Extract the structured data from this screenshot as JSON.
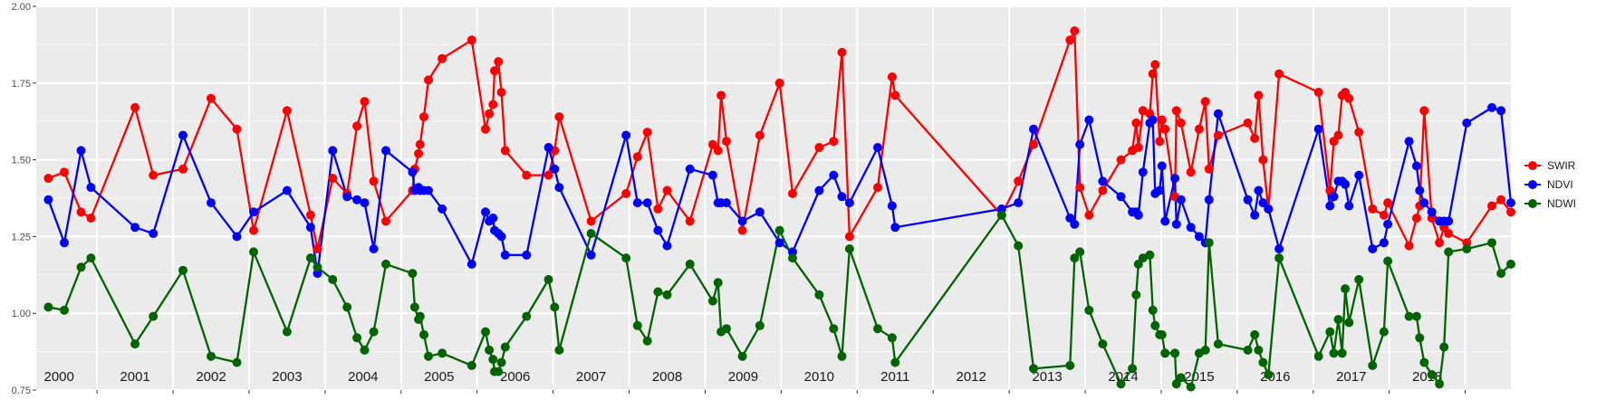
{
  "chart_data": {
    "type": "line",
    "title": "",
    "xlabel": "",
    "ylabel": "",
    "xlim": [
      1999.7,
      2019.1
    ],
    "ylim": [
      0.75,
      2.0
    ],
    "y_ticks": [
      "0.75",
      "1.00",
      "1.25",
      "1.50",
      "1.75",
      "2.00"
    ],
    "year_labels": [
      "2000",
      "2001",
      "2002",
      "2003",
      "2004",
      "2005",
      "2006",
      "2007",
      "2008",
      "2009",
      "2010",
      "2011",
      "2012",
      "2013",
      "2014",
      "2015",
      "2016",
      "2017",
      "2018"
    ],
    "panel_background": "#ebebeb",
    "grid": true,
    "legend_position": "right",
    "series": [
      {
        "name": "SWIR",
        "color": "#ff0000",
        "x": [
          1999.86,
          2000.07,
          2000.29,
          2000.42,
          2001.0,
          2001.24,
          2001.63,
          2002.0,
          2002.34,
          2002.56,
          2003.0,
          2003.31,
          2003.4,
          2003.6,
          2003.79,
          2003.92,
          2004.02,
          2004.14,
          2004.3,
          2004.65,
          2004.68,
          2004.73,
          2004.75,
          2004.8,
          2004.86,
          2005.04,
          2005.43,
          2005.61,
          2005.66,
          2005.71,
          2005.73,
          2005.78,
          2005.82,
          2005.87,
          2006.15,
          2006.44,
          2006.52,
          2006.58,
          2007.0,
          2007.46,
          2007.61,
          2007.74,
          2007.88,
          2008.0,
          2008.3,
          2008.6,
          2008.67,
          2008.71,
          2008.78,
          2008.99,
          2009.22,
          2009.48,
          2009.65,
          2010.0,
          2010.19,
          2010.3,
          2010.4,
          2010.77,
          2010.96,
          2011.0,
          2012.4,
          2012.62,
          2012.82,
          2013.3,
          2013.36,
          2013.43,
          2013.55,
          2013.73,
          2013.97,
          2014.12,
          2014.17,
          2014.2,
          2014.26,
          2014.35,
          2014.39,
          2014.42,
          2014.48,
          2014.51,
          2014.55,
          2014.68,
          2014.7,
          2014.76,
          2014.89,
          2015.0,
          2015.08,
          2015.13,
          2015.25,
          2015.64,
          2015.73,
          2015.78,
          2015.84,
          2015.91,
          2016.05,
          2016.57,
          2016.72,
          2016.77,
          2016.83,
          2016.88,
          2016.92,
          2016.97,
          2017.1,
          2017.28,
          2017.43,
          2017.48,
          2017.76,
          2017.86,
          2017.9,
          2017.96,
          2018.06,
          2018.16,
          2018.22,
          2018.28,
          2018.52,
          2018.85,
          2018.97,
          2019.1
        ],
        "y": [
          1.44,
          1.46,
          1.33,
          1.31,
          1.67,
          1.45,
          1.47,
          1.7,
          1.6,
          1.27,
          1.66,
          1.32,
          1.21,
          1.44,
          1.39,
          1.61,
          1.69,
          1.43,
          1.3,
          1.4,
          1.47,
          1.52,
          1.55,
          1.64,
          1.76,
          1.83,
          1.89,
          1.6,
          1.65,
          1.68,
          1.79,
          1.82,
          1.72,
          1.53,
          1.45,
          1.45,
          1.53,
          1.64,
          1.3,
          1.39,
          1.51,
          1.59,
          1.34,
          1.4,
          1.3,
          1.55,
          1.53,
          1.71,
          1.56,
          1.27,
          1.58,
          1.75,
          1.39,
          1.54,
          1.56,
          1.85,
          1.25,
          1.41,
          1.77,
          1.71,
          1.32,
          1.43,
          1.55,
          1.89,
          1.92,
          1.41,
          1.32,
          1.4,
          1.5,
          1.53,
          1.62,
          1.54,
          1.66,
          1.65,
          1.78,
          1.81,
          1.56,
          1.63,
          1.6,
          1.38,
          1.66,
          1.62,
          1.46,
          1.6,
          1.69,
          1.47,
          1.58,
          1.62,
          1.57,
          1.71,
          1.5,
          1.34,
          1.78,
          1.72,
          1.4,
          1.56,
          1.58,
          1.71,
          1.72,
          1.7,
          1.59,
          1.34,
          1.32,
          1.36,
          1.22,
          1.31,
          1.35,
          1.66,
          1.31,
          1.23,
          1.28,
          1.26,
          1.23,
          1.35,
          1.37,
          1.33
        ]
      },
      {
        "name": "NDVI",
        "color": "#0000ff",
        "x": [
          1999.86,
          2000.07,
          2000.29,
          2000.42,
          2001.0,
          2001.24,
          2001.63,
          2002.0,
          2002.34,
          2002.56,
          2003.0,
          2003.31,
          2003.4,
          2003.6,
          2003.79,
          2003.92,
          2004.02,
          2004.14,
          2004.3,
          2004.65,
          2004.68,
          2004.73,
          2004.75,
          2004.8,
          2004.86,
          2005.04,
          2005.43,
          2005.61,
          2005.66,
          2005.71,
          2005.73,
          2005.78,
          2005.82,
          2005.87,
          2006.15,
          2006.44,
          2006.52,
          2006.58,
          2007.0,
          2007.46,
          2007.61,
          2007.74,
          2007.88,
          2008.0,
          2008.3,
          2008.6,
          2008.67,
          2008.71,
          2008.78,
          2008.99,
          2009.22,
          2009.48,
          2009.65,
          2010.0,
          2010.19,
          2010.3,
          2010.4,
          2010.77,
          2010.96,
          2011.0,
          2012.4,
          2012.62,
          2012.82,
          2013.3,
          2013.36,
          2013.43,
          2013.55,
          2013.73,
          2013.97,
          2014.12,
          2014.17,
          2014.2,
          2014.26,
          2014.35,
          2014.39,
          2014.42,
          2014.48,
          2014.51,
          2014.55,
          2014.68,
          2014.7,
          2014.76,
          2014.89,
          2015.0,
          2015.08,
          2015.13,
          2015.25,
          2015.64,
          2015.73,
          2015.78,
          2015.84,
          2015.91,
          2016.05,
          2016.57,
          2016.72,
          2016.77,
          2016.83,
          2016.88,
          2016.92,
          2016.97,
          2017.1,
          2017.28,
          2017.43,
          2017.48,
          2017.76,
          2017.86,
          2017.9,
          2017.96,
          2018.06,
          2018.16,
          2018.22,
          2018.28,
          2018.52,
          2018.85,
          2018.97,
          2019.1
        ],
        "y": [
          1.37,
          1.23,
          1.53,
          1.41,
          1.28,
          1.26,
          1.58,
          1.36,
          1.25,
          1.33,
          1.4,
          1.28,
          1.13,
          1.53,
          1.38,
          1.37,
          1.36,
          1.21,
          1.53,
          1.46,
          1.4,
          1.41,
          1.4,
          1.4,
          1.4,
          1.34,
          1.16,
          1.33,
          1.3,
          1.31,
          1.27,
          1.26,
          1.25,
          1.19,
          1.19,
          1.54,
          1.47,
          1.41,
          1.19,
          1.58,
          1.36,
          1.36,
          1.27,
          1.22,
          1.47,
          1.45,
          1.36,
          1.36,
          1.36,
          1.3,
          1.33,
          1.23,
          1.2,
          1.4,
          1.45,
          1.38,
          1.36,
          1.54,
          1.35,
          1.28,
          1.34,
          1.36,
          1.6,
          1.31,
          1.29,
          1.55,
          1.63,
          1.43,
          1.38,
          1.33,
          1.33,
          1.32,
          1.46,
          1.62,
          1.63,
          1.39,
          1.4,
          1.48,
          1.3,
          1.44,
          1.29,
          1.37,
          1.28,
          1.25,
          1.23,
          1.37,
          1.65,
          1.37,
          1.32,
          1.4,
          1.36,
          1.34,
          1.21,
          1.6,
          1.35,
          1.38,
          1.43,
          1.43,
          1.42,
          1.35,
          1.45,
          1.21,
          1.23,
          1.29,
          1.56,
          1.48,
          1.4,
          1.36,
          1.33,
          1.3,
          1.3,
          1.3,
          1.62,
          1.67,
          1.66,
          1.36
        ]
      },
      {
        "name": "NDWI",
        "color": "#006400",
        "x": [
          1999.86,
          2000.07,
          2000.29,
          2000.42,
          2001.0,
          2001.24,
          2001.63,
          2002.0,
          2002.34,
          2002.56,
          2003.0,
          2003.31,
          2003.4,
          2003.6,
          2003.79,
          2003.92,
          2004.02,
          2004.14,
          2004.3,
          2004.65,
          2004.68,
          2004.73,
          2004.75,
          2004.8,
          2004.86,
          2005.04,
          2005.43,
          2005.61,
          2005.66,
          2005.71,
          2005.73,
          2005.78,
          2005.82,
          2005.87,
          2006.15,
          2006.44,
          2006.52,
          2006.58,
          2007.0,
          2007.46,
          2007.61,
          2007.74,
          2007.88,
          2008.0,
          2008.3,
          2008.6,
          2008.67,
          2008.71,
          2008.78,
          2008.99,
          2009.22,
          2009.48,
          2009.65,
          2010.0,
          2010.19,
          2010.3,
          2010.4,
          2010.77,
          2010.96,
          2011.0,
          2012.4,
          2012.62,
          2012.82,
          2013.3,
          2013.36,
          2013.43,
          2013.55,
          2013.73,
          2013.97,
          2014.12,
          2014.17,
          2014.2,
          2014.26,
          2014.35,
          2014.39,
          2014.42,
          2014.48,
          2014.51,
          2014.55,
          2014.68,
          2014.7,
          2014.76,
          2014.89,
          2015.0,
          2015.08,
          2015.13,
          2015.25,
          2015.64,
          2015.73,
          2015.78,
          2015.84,
          2015.91,
          2016.05,
          2016.57,
          2016.72,
          2016.77,
          2016.83,
          2016.88,
          2016.92,
          2016.97,
          2017.1,
          2017.28,
          2017.43,
          2017.48,
          2017.76,
          2017.86,
          2017.9,
          2017.96,
          2018.06,
          2018.16,
          2018.22,
          2018.28,
          2018.52,
          2018.85,
          2018.97,
          2019.1
        ],
        "y": [
          1.02,
          1.01,
          1.15,
          1.18,
          0.9,
          0.99,
          1.14,
          0.86,
          0.84,
          1.2,
          0.94,
          1.18,
          1.15,
          1.11,
          1.02,
          0.92,
          0.88,
          0.94,
          1.16,
          1.13,
          1.02,
          0.98,
          0.99,
          0.93,
          0.86,
          0.87,
          0.83,
          0.94,
          0.88,
          0.85,
          0.81,
          0.81,
          0.84,
          0.89,
          0.99,
          1.11,
          1.02,
          0.88,
          1.26,
          1.18,
          0.96,
          0.91,
          1.07,
          1.06,
          1.16,
          1.04,
          1.1,
          0.94,
          0.95,
          0.86,
          0.96,
          1.27,
          1.18,
          1.06,
          0.95,
          0.86,
          1.21,
          0.95,
          0.92,
          0.84,
          1.32,
          1.22,
          0.82,
          0.83,
          1.18,
          1.2,
          1.01,
          0.9,
          0.77,
          0.82,
          1.06,
          1.16,
          1.18,
          1.19,
          1.01,
          0.96,
          0.93,
          0.93,
          0.87,
          0.87,
          0.77,
          0.79,
          0.76,
          0.87,
          0.88,
          1.23,
          0.9,
          0.88,
          0.93,
          0.88,
          0.84,
          0.8,
          1.18,
          0.86,
          0.94,
          0.87,
          0.98,
          0.87,
          1.08,
          0.97,
          1.11,
          0.83,
          0.94,
          1.17,
          0.99,
          0.99,
          0.92,
          0.84,
          0.8,
          0.77,
          0.89,
          1.2,
          1.21,
          1.23,
          1.13,
          1.16
        ]
      }
    ]
  }
}
